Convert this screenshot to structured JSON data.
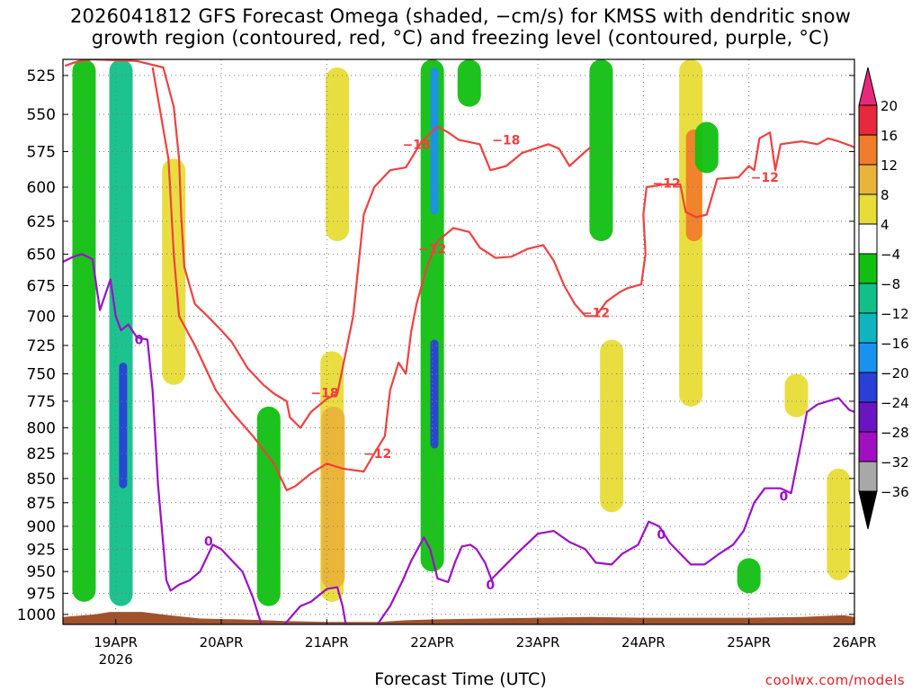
{
  "title": "2026041812 GFS Forecast Omega (shaded, −cm/s) for KMSS with dendritic snow\ngrowth region (contoured, red, °C) and freezing level (contoured, purple, °C)",
  "xlabel": "Forecast Time (UTC)",
  "credit": "coolwx.com/models",
  "colors": {
    "dgz_contour": "#f04040",
    "freezing_contour": "#9a10c8",
    "terrain": "#a0522d",
    "grid": "#7a7a7a"
  },
  "chart_data": {
    "type": "heatmap",
    "title": "2026041812 GFS Forecast Omega (shaded, −cm/s) for KMSS with dendritic snow growth region (contoured, red, °C) and freezing level (contoured, purple, °C)",
    "xlabel": "Forecast Time (UTC)",
    "ylabel": "",
    "y_scale": "pressure (inverted, log-like)",
    "y_ticks": [
      525,
      550,
      575,
      600,
      625,
      650,
      675,
      700,
      725,
      750,
      775,
      800,
      825,
      850,
      875,
      900,
      925,
      950,
      975,
      1000
    ],
    "x_ticks": [
      {
        "label": "19APR",
        "sub": "2026",
        "day": 1
      },
      {
        "label": "20APR",
        "sub": "",
        "day": 2
      },
      {
        "label": "21APR",
        "sub": "",
        "day": 3
      },
      {
        "label": "22APR",
        "sub": "",
        "day": 4
      },
      {
        "label": "23APR",
        "sub": "",
        "day": 5
      },
      {
        "label": "24APR",
        "sub": "",
        "day": 6
      },
      {
        "label": "25APR",
        "sub": "",
        "day": 7
      },
      {
        "label": "26APR",
        "sub": "",
        "day": 8
      }
    ],
    "xlim_days": [
      0.5,
      8.0
    ],
    "ylim_hpa": [
      515,
      1012
    ],
    "grid": true,
    "colorbar": {
      "labels": [
        "20",
        "16",
        "12",
        "8",
        "4",
        "−4",
        "−8",
        "−12",
        "−16",
        "−20",
        "−24",
        "−28",
        "−32",
        "−36"
      ],
      "bins": [
        {
          "range": "16 to 20",
          "color": "#e8283c"
        },
        {
          "range": "12 to 16",
          "color": "#f07d2a"
        },
        {
          "range": "8 to 12",
          "color": "#eab33a"
        },
        {
          "range": "4 to 8",
          "color": "#e8dc36"
        },
        {
          "range": "-4 to 4",
          "color": "#ffffff"
        },
        {
          "range": "-8 to -4",
          "color": "#10c010"
        },
        {
          "range": "-12 to -8",
          "color": "#10c088"
        },
        {
          "range": "-16 to -12",
          "color": "#10b4c0"
        },
        {
          "range": "-20 to -16",
          "color": "#1892ee"
        },
        {
          "range": "-24 to -20",
          "color": "#2a3fd8"
        },
        {
          "range": "-28 to -24",
          "color": "#6a14c4"
        },
        {
          "range": "-32 to -28",
          "color": "#a010c0"
        },
        {
          "range": "-36 to -32",
          "color": "#a8a8a8"
        }
      ],
      "top_arrow_color": "#e8287a",
      "bottom_arrow_color": "#000000"
    },
    "contour_labels": [
      {
        "text": "−18",
        "series": "dgz",
        "day": 3.85,
        "p": 570
      },
      {
        "text": "−18",
        "series": "dgz",
        "day": 4.7,
        "p": 567
      },
      {
        "text": "−18",
        "series": "dgz",
        "day": 2.98,
        "p": 767
      },
      {
        "text": "−12",
        "series": "dgz",
        "day": 4.0,
        "p": 646
      },
      {
        "text": "−12",
        "series": "dgz",
        "day": 6.22,
        "p": 597
      },
      {
        "text": "−12",
        "series": "dgz",
        "day": 7.15,
        "p": 593
      },
      {
        "text": "−12",
        "series": "dgz",
        "day": 5.55,
        "p": 697
      },
      {
        "text": "−12",
        "series": "dgz",
        "day": 3.48,
        "p": 825
      },
      {
        "text": "0",
        "series": "freezing",
        "day": 1.22,
        "p": 720
      },
      {
        "text": "0",
        "series": "freezing",
        "day": 1.88,
        "p": 916
      },
      {
        "text": "0",
        "series": "freezing",
        "day": 4.55,
        "p": 965
      },
      {
        "text": "0",
        "series": "freezing",
        "day": 6.17,
        "p": 909
      },
      {
        "text": "0",
        "series": "freezing",
        "day": 7.33,
        "p": 868
      }
    ],
    "series": [
      {
        "kind": "contour",
        "level": -18,
        "segments": [
          [
            [
              0.52,
              519
            ],
            [
              0.65,
              516
            ],
            [
              0.78,
              515
            ],
            [
              1.2,
              516
            ],
            [
              1.45,
              520
            ],
            [
              1.55,
              545
            ],
            [
              1.6,
              580
            ],
            [
              1.62,
              620
            ],
            [
              1.65,
              660
            ],
            [
              1.75,
              690
            ],
            [
              1.87,
              700
            ],
            [
              2.0,
              712
            ],
            [
              2.1,
              722
            ],
            [
              2.25,
              745
            ],
            [
              2.4,
              760
            ],
            [
              2.5,
              768
            ],
            [
              2.62,
              775
            ],
            [
              2.65,
              790
            ],
            [
              2.75,
              800
            ],
            [
              2.85,
              785
            ],
            [
              3.0,
              773
            ],
            [
              3.1,
              768
            ],
            [
              3.25,
              700
            ],
            [
              3.35,
              620
            ],
            [
              3.45,
              600
            ],
            [
              3.6,
              588
            ],
            [
              3.75,
              586
            ],
            [
              3.9,
              568
            ],
            [
              4.05,
              558
            ],
            [
              4.15,
              562
            ],
            [
              4.25,
              567
            ],
            [
              4.45,
              570
            ],
            [
              4.55,
              588
            ],
            [
              4.7,
              585
            ],
            [
              4.85,
              576
            ],
            [
              5.1,
              570
            ],
            [
              5.2,
              573
            ],
            [
              5.3,
              585
            ],
            [
              5.45,
              575
            ],
            [
              5.5,
              572
            ]
          ]
        ]
      },
      {
        "kind": "contour",
        "level": -12,
        "segments": [
          [
            [
              1.35,
              520
            ],
            [
              1.5,
              580
            ],
            [
              1.55,
              650
            ],
            [
              1.6,
              700
            ],
            [
              1.75,
              725
            ],
            [
              1.95,
              765
            ],
            [
              2.1,
              785
            ],
            [
              2.3,
              808
            ],
            [
              2.5,
              835
            ],
            [
              2.62,
              862
            ],
            [
              2.7,
              858
            ],
            [
              2.85,
              845
            ],
            [
              3.0,
              835
            ],
            [
              3.15,
              840
            ],
            [
              3.35,
              843
            ],
            [
              3.45,
              825
            ],
            [
              3.55,
              808
            ],
            [
              3.6,
              765
            ],
            [
              3.68,
              740
            ],
            [
              3.75,
              750
            ],
            [
              3.8,
              713
            ],
            [
              3.85,
              690
            ],
            [
              3.95,
              660
            ],
            [
              4.05,
              640
            ],
            [
              4.2,
              630
            ],
            [
              4.35,
              633
            ],
            [
              4.45,
              645
            ],
            [
              4.6,
              653
            ],
            [
              4.75,
              652
            ],
            [
              4.9,
              646
            ],
            [
              5.05,
              643
            ],
            [
              5.15,
              655
            ],
            [
              5.25,
              675
            ],
            [
              5.35,
              690
            ],
            [
              5.45,
              700
            ],
            [
              5.55,
              700
            ],
            [
              5.65,
              688
            ],
            [
              5.78,
              680
            ],
            [
              5.85,
              677
            ],
            [
              5.98,
              674
            ],
            [
              6.02,
              650
            ],
            [
              6.0,
              620
            ],
            [
              6.03,
              600
            ],
            [
              6.2,
              598
            ],
            [
              6.35,
              598
            ],
            [
              6.4,
              618
            ],
            [
              6.5,
              622
            ],
            [
              6.6,
              620
            ],
            [
              6.7,
              594
            ],
            [
              6.9,
              593
            ],
            [
              7.0,
              585
            ],
            [
              7.05,
              588
            ],
            [
              7.1,
              566
            ],
            [
              7.2,
              562
            ],
            [
              7.25,
              588
            ],
            [
              7.3,
              570
            ],
            [
              7.5,
              568
            ],
            [
              7.65,
              570
            ],
            [
              7.75,
              566
            ],
            [
              7.85,
              568
            ],
            [
              8.0,
              572
            ]
          ]
        ]
      },
      {
        "kind": "contour",
        "level": 0,
        "segments": [
          [
            [
              0.5,
              656
            ],
            [
              0.6,
              652
            ],
            [
              0.68,
              650
            ],
            [
              0.78,
              654
            ],
            [
              0.85,
              695
            ],
            [
              0.95,
              670
            ],
            [
              1.0,
              700
            ],
            [
              1.05,
              712
            ],
            [
              1.12,
              707
            ],
            [
              1.2,
              718
            ],
            [
              1.3,
              720
            ],
            [
              1.35,
              765
            ],
            [
              1.4,
              855
            ],
            [
              1.42,
              880
            ],
            [
              1.48,
              960
            ],
            [
              1.52,
              972
            ],
            [
              1.6,
              965
            ],
            [
              1.7,
              960
            ],
            [
              1.8,
              950
            ],
            [
              1.92,
              920
            ],
            [
              2.0,
              925
            ],
            [
              2.08,
              935
            ],
            [
              2.2,
              950
            ],
            [
              2.3,
              980
            ],
            [
              2.38,
              1012
            ]
          ],
          [
            [
              2.6,
              1012
            ],
            [
              2.75,
              990
            ],
            [
              2.85,
              985
            ],
            [
              3.0,
              970
            ],
            [
              3.1,
              968
            ],
            [
              3.15,
              990
            ],
            [
              3.18,
              1012
            ]
          ],
          [
            [
              3.48,
              1012
            ],
            [
              3.6,
              990
            ],
            [
              3.72,
              960
            ],
            [
              3.8,
              938
            ],
            [
              3.92,
              912
            ],
            [
              3.98,
              925
            ],
            [
              4.05,
              958
            ],
            [
              4.15,
              962
            ],
            [
              4.22,
              938
            ],
            [
              4.28,
              922
            ],
            [
              4.36,
              920
            ],
            [
              4.42,
              925
            ],
            [
              4.5,
              940
            ],
            [
              4.57,
              962
            ]
          ],
          [
            [
              4.55,
              960
            ],
            [
              4.8,
              930
            ],
            [
              5.0,
              908
            ],
            [
              5.15,
              905
            ],
            [
              5.3,
              917
            ],
            [
              5.45,
              925
            ],
            [
              5.55,
              940
            ],
            [
              5.7,
              942
            ],
            [
              5.8,
              930
            ],
            [
              5.95,
              920
            ],
            [
              6.05,
              895
            ],
            [
              6.15,
              900
            ],
            [
              6.25,
              918
            ],
            [
              6.35,
              930
            ],
            [
              6.45,
              942
            ],
            [
              6.58,
              942
            ],
            [
              6.72,
              930
            ],
            [
              6.85,
              920
            ],
            [
              6.95,
              905
            ],
            [
              7.05,
              875
            ],
            [
              7.15,
              860
            ],
            [
              7.3,
              860
            ],
            [
              7.4,
              865
            ],
            [
              7.5,
              812
            ],
            [
              7.55,
              785
            ],
            [
              7.65,
              778
            ],
            [
              7.85,
              772
            ],
            [
              7.95,
              783
            ],
            [
              8.0,
              785
            ]
          ]
        ]
      }
    ],
    "omega_regions": [
      {
        "bin": "-8 to -4",
        "day": 0.7,
        "p_top": 515,
        "p_bottom": 985
      },
      {
        "bin": "-12 to -8",
        "day": 1.05,
        "p_top": 515,
        "p_bottom": 990
      },
      {
        "bin": "-24 to -20",
        "day": 1.07,
        "p_top": 740,
        "p_bottom": 860
      },
      {
        "bin": "4 to 8",
        "day": 1.55,
        "p_top": 580,
        "p_bottom": 760
      },
      {
        "bin": "4 to 8",
        "day": 3.05,
        "p_top": 730,
        "p_bottom": 985
      },
      {
        "bin": "8 to 12",
        "day": 3.06,
        "p_top": 780,
        "p_bottom": 970
      },
      {
        "bin": "4 to 8",
        "day": 3.1,
        "p_top": 520,
        "p_bottom": 640
      },
      {
        "bin": "-8 to -4",
        "day": 2.45,
        "p_top": 780,
        "p_bottom": 990
      },
      {
        "bin": "-8 to -4",
        "day": 4.0,
        "p_top": 515,
        "p_bottom": 950
      },
      {
        "bin": "-20 to -16",
        "day": 4.02,
        "p_top": 520,
        "p_bottom": 620
      },
      {
        "bin": "-24 to -20",
        "day": 4.02,
        "p_top": 720,
        "p_bottom": 820
      },
      {
        "bin": "-8 to -4",
        "day": 4.35,
        "p_top": 515,
        "p_bottom": 545
      },
      {
        "bin": "-8 to -4",
        "day": 5.6,
        "p_top": 515,
        "p_bottom": 640
      },
      {
        "bin": "4 to 8",
        "day": 5.7,
        "p_top": 720,
        "p_bottom": 885
      },
      {
        "bin": "4 to 8",
        "day": 6.45,
        "p_top": 515,
        "p_bottom": 780
      },
      {
        "bin": "12 to 16",
        "day": 6.48,
        "p_top": 560,
        "p_bottom": 640
      },
      {
        "bin": "-8 to -4",
        "day": 6.6,
        "p_top": 555,
        "p_bottom": 590
      },
      {
        "bin": "4 to 8",
        "day": 7.45,
        "p_top": 750,
        "p_bottom": 790
      },
      {
        "bin": "4 to 8",
        "day": 7.85,
        "p_top": 840,
        "p_bottom": 960
      },
      {
        "bin": "-8 to -4",
        "day": 7.0,
        "p_top": 935,
        "p_bottom": 975
      }
    ]
  }
}
